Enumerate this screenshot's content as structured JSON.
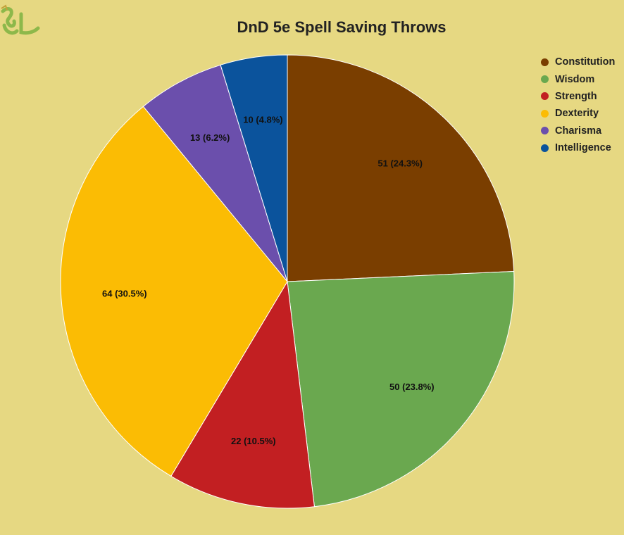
{
  "chart_data": {
    "type": "pie",
    "title": "DnD 5e Spell Saving Throws",
    "legend_position": "top-right",
    "slices": [
      {
        "label": "Constitution",
        "value": 51,
        "percent": "24.3%",
        "display": "51 (24.3%)",
        "color": "#7a3e00"
      },
      {
        "label": "Wisdom",
        "value": 50,
        "percent": "23.8%",
        "display": "50 (23.8%)",
        "color": "#6aa84f"
      },
      {
        "label": "Strength",
        "value": 22,
        "percent": "10.5%",
        "display": "22 (10.5%)",
        "color": "#c21f22"
      },
      {
        "label": "Dexterity",
        "value": 64,
        "percent": "30.5%",
        "display": "64 (30.5%)",
        "color": "#fbbc04"
      },
      {
        "label": "Charisma",
        "value": 13,
        "percent": "6.2%",
        "display": "13 (6.2%)",
        "color": "#6b4fac"
      },
      {
        "label": "Intelligence",
        "value": 10,
        "percent": "4.8%",
        "display": "10 (4.8%)",
        "color": "#0b539c"
      }
    ]
  },
  "logo": {
    "icon": "dragon-logo-icon",
    "color": "#8db84a"
  }
}
